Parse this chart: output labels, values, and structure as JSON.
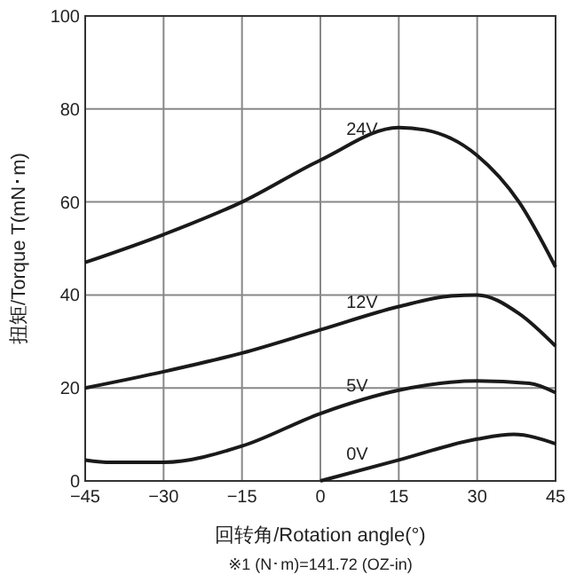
{
  "chart_data": {
    "type": "line",
    "xlabel": "回转角/Rotation angle(°)",
    "ylabel": "扭矩/Torque T(mN･m)",
    "annotations": [
      "※1 (N･m)=141.72 (OZ-in)"
    ],
    "series": [
      {
        "name": "24V",
        "color": "#1a1a1a",
        "x": [
          -45,
          -30,
          -15,
          0,
          15,
          20,
          30,
          38,
          45
        ],
        "values": [
          47,
          53,
          60,
          69,
          76,
          75.5,
          70,
          60,
          46
        ]
      },
      {
        "name": "12V",
        "color": "#1a1a1a",
        "x": [
          -45,
          -30,
          -15,
          0,
          15,
          25,
          30,
          38,
          45
        ],
        "values": [
          20,
          23.5,
          27.5,
          32.5,
          37.5,
          39.8,
          40,
          36,
          29
        ]
      },
      {
        "name": "5V",
        "color": "#1a1a1a",
        "x": [
          -45,
          -40,
          -30,
          -15,
          0,
          15,
          30,
          40,
          45
        ],
        "values": [
          4.5,
          4,
          4,
          7.5,
          14.5,
          19.5,
          21.5,
          21,
          19
        ]
      },
      {
        "name": "0V",
        "color": "#1a1a1a",
        "x": [
          0,
          15,
          30,
          37,
          45
        ],
        "values": [
          0,
          4.5,
          9,
          10,
          8
        ]
      }
    ],
    "xlim": [
      -45,
      45
    ],
    "xticks": [
      -45,
      -30,
      -15,
      0,
      15,
      30,
      45
    ],
    "ylim": [
      0,
      100
    ],
    "yticks": [
      0,
      20,
      40,
      60,
      80,
      100
    ],
    "grid": true,
    "legend": false,
    "marker": "none",
    "line_style": "solid"
  }
}
